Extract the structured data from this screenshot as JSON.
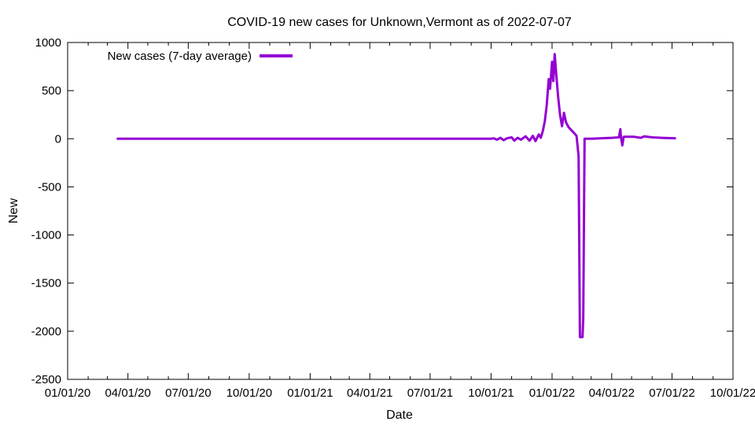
{
  "chart_data": {
    "type": "line",
    "title": "COVID-19 new cases for Unknown,Vermont as of 2022-07-07",
    "xlabel": "Date",
    "ylabel": "New",
    "xlim": [
      "2020-01-01",
      "2022-10-01"
    ],
    "ylim": [
      -2500,
      1000
    ],
    "x_ticks": [
      "01/01/20",
      "04/01/20",
      "07/01/20",
      "10/01/20",
      "01/01/21",
      "04/01/21",
      "07/01/21",
      "10/01/21",
      "01/01/22",
      "04/01/22",
      "07/01/22",
      "10/01/22"
    ],
    "x_tick_dates": [
      "2020-01-01",
      "2020-04-01",
      "2020-07-01",
      "2020-10-01",
      "2021-01-01",
      "2021-04-01",
      "2021-07-01",
      "2021-10-01",
      "2022-01-01",
      "2022-04-01",
      "2022-07-01",
      "2022-10-01"
    ],
    "y_ticks": [
      1000,
      500,
      0,
      -500,
      -1000,
      -1500,
      -2000,
      -2500
    ],
    "grid": false,
    "legend_position": "top-left",
    "series": [
      {
        "name": "New cases (7-day average)",
        "color": "#9400d3",
        "points": [
          [
            "2020-03-15",
            0
          ],
          [
            "2020-04-15",
            0
          ],
          [
            "2020-06-01",
            0
          ],
          [
            "2020-09-01",
            0
          ],
          [
            "2021-01-01",
            0
          ],
          [
            "2021-06-01",
            0
          ],
          [
            "2021-09-01",
            0
          ],
          [
            "2021-10-01",
            0
          ],
          [
            "2021-10-05",
            5
          ],
          [
            "2021-10-10",
            -10
          ],
          [
            "2021-10-15",
            10
          ],
          [
            "2021-10-20",
            -15
          ],
          [
            "2021-10-25",
            5
          ],
          [
            "2021-11-01",
            15
          ],
          [
            "2021-11-05",
            -20
          ],
          [
            "2021-11-10",
            10
          ],
          [
            "2021-11-15",
            -10
          ],
          [
            "2021-11-22",
            25
          ],
          [
            "2021-11-28",
            -20
          ],
          [
            "2021-12-03",
            30
          ],
          [
            "2021-12-07",
            -25
          ],
          [
            "2021-12-12",
            45
          ],
          [
            "2021-12-15",
            10
          ],
          [
            "2021-12-18",
            80
          ],
          [
            "2021-12-21",
            180
          ],
          [
            "2021-12-24",
            350
          ],
          [
            "2021-12-27",
            620
          ],
          [
            "2021-12-29",
            520
          ],
          [
            "2022-01-01",
            800
          ],
          [
            "2022-01-03",
            600
          ],
          [
            "2022-01-05",
            880
          ],
          [
            "2022-01-07",
            700
          ],
          [
            "2022-01-10",
            450
          ],
          [
            "2022-01-13",
            250
          ],
          [
            "2022-01-16",
            130
          ],
          [
            "2022-01-19",
            270
          ],
          [
            "2022-01-22",
            170
          ],
          [
            "2022-01-26",
            120
          ],
          [
            "2022-01-30",
            90
          ],
          [
            "2022-02-03",
            60
          ],
          [
            "2022-02-07",
            30
          ],
          [
            "2022-02-10",
            -180
          ],
          [
            "2022-02-12",
            -2060
          ],
          [
            "2022-02-16",
            -2060
          ],
          [
            "2022-02-17",
            -1870
          ],
          [
            "2022-02-19",
            0
          ],
          [
            "2022-03-01",
            0
          ],
          [
            "2022-03-15",
            5
          ],
          [
            "2022-04-01",
            10
          ],
          [
            "2022-04-12",
            15
          ],
          [
            "2022-04-14",
            100
          ],
          [
            "2022-04-15",
            15
          ],
          [
            "2022-04-17",
            -70
          ],
          [
            "2022-04-19",
            20
          ],
          [
            "2022-05-05",
            20
          ],
          [
            "2022-05-15",
            10
          ],
          [
            "2022-05-20",
            25
          ],
          [
            "2022-06-01",
            15
          ],
          [
            "2022-06-15",
            10
          ],
          [
            "2022-07-07",
            5
          ]
        ]
      }
    ]
  }
}
